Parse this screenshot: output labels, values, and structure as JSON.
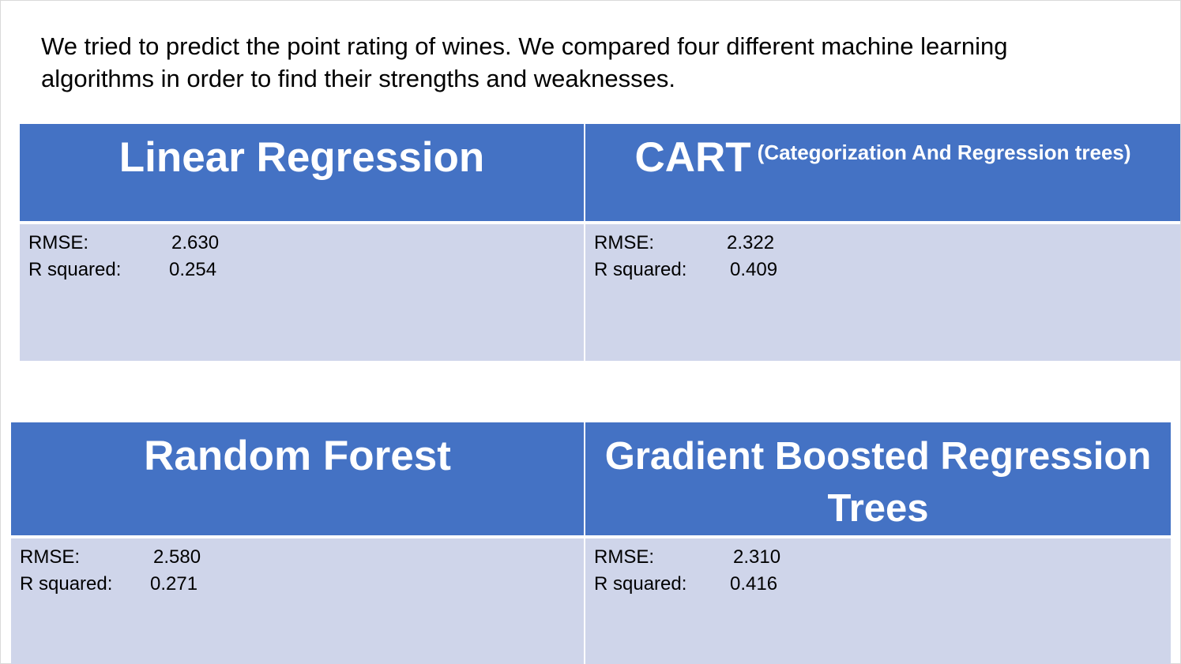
{
  "intro": "We tried to predict the point rating of wines. We compared four different machine learning algorithms in order to find their strengths and weaknesses.",
  "models": [
    {
      "title": "Linear Regression",
      "subtitle": "",
      "rmse_label": "RMSE:",
      "rmse": "2.630",
      "r2_label": "R squared:",
      "r2": "0.254"
    },
    {
      "title": "CART",
      "subtitle": "(Categorization And Regression trees)",
      "rmse_label": "RMSE:",
      "rmse": "2.322",
      "r2_label": "R squared:",
      "r2": "0.409"
    },
    {
      "title": "Random Forest",
      "subtitle": "",
      "rmse_label": "RMSE:",
      "rmse": "2.580",
      "r2_label": "R squared:",
      "r2": "0.271"
    },
    {
      "title": "Gradient Boosted Regression Trees",
      "subtitle": "",
      "rmse_label": "RMSE:",
      "rmse": "2.310",
      "r2_label": "R squared:",
      "r2": "0.416"
    }
  ],
  "colors": {
    "header_bg": "#4472c4",
    "body_bg": "#cfd5ea",
    "header_text": "#ffffff"
  }
}
